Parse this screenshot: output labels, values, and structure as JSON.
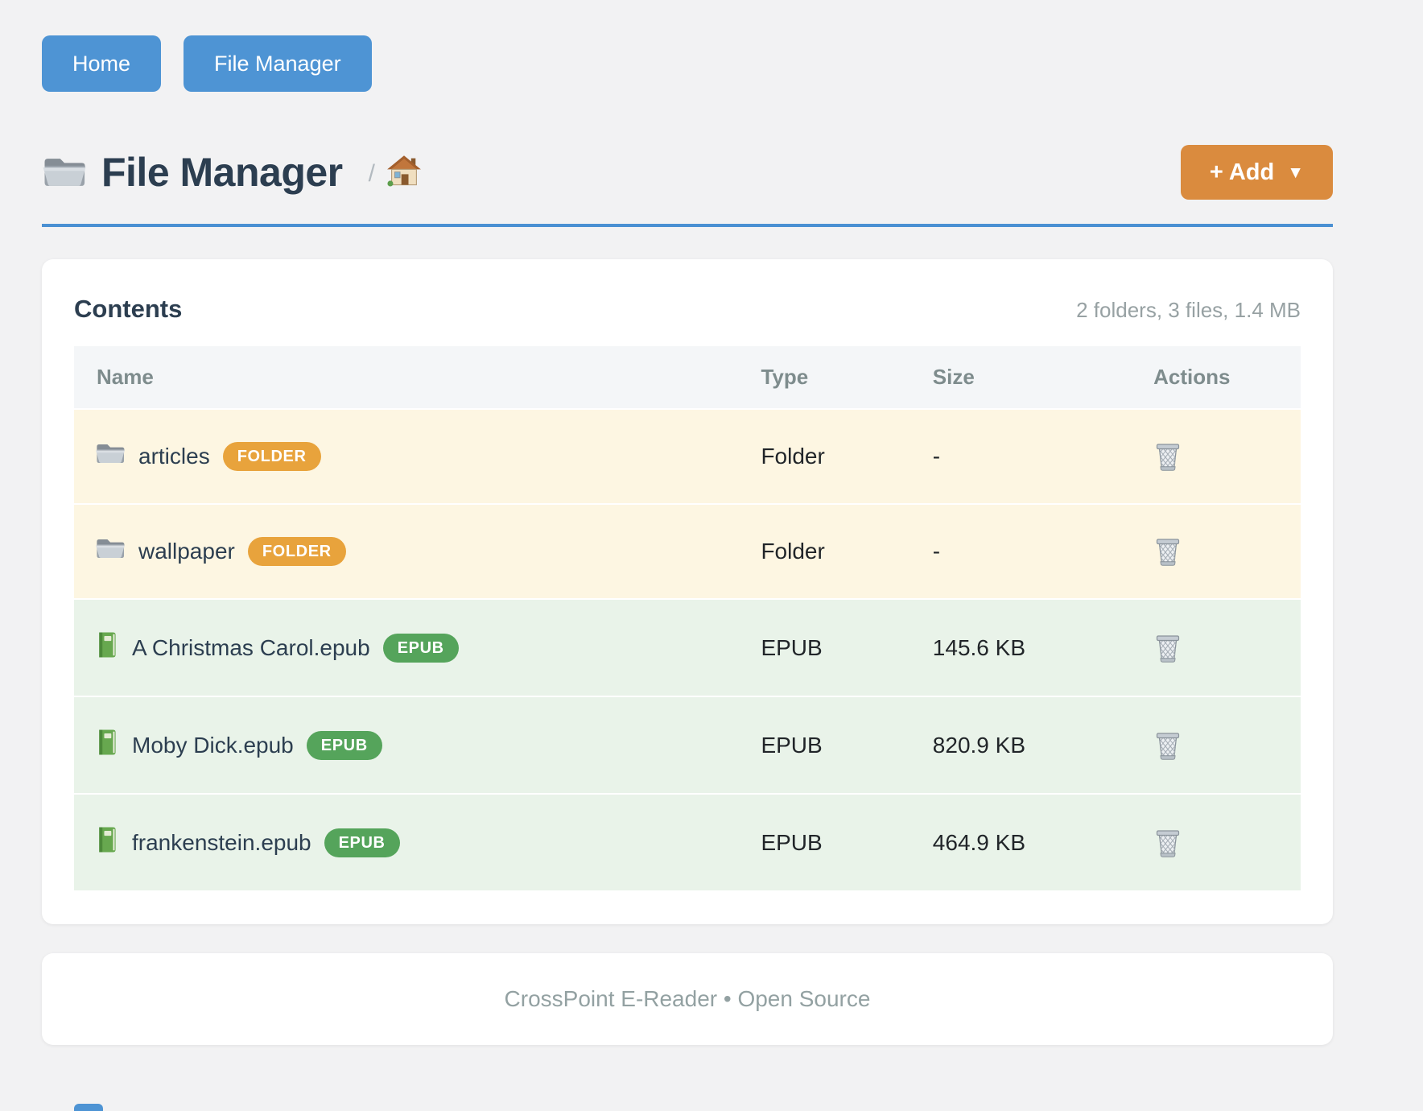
{
  "nav": {
    "buttons": [
      {
        "label": "Home"
      },
      {
        "label": "File Manager"
      }
    ]
  },
  "header": {
    "title": "File Manager",
    "breadcrumb_separator": "/",
    "add_button": {
      "label": "+ Add",
      "caret": "▼"
    }
  },
  "content_card": {
    "heading": "Contents",
    "summary": "2 folders, 3 files, 1.4 MB",
    "table": {
      "headers": [
        "Name",
        "Type",
        "Size",
        "Actions"
      ],
      "rows": [
        {
          "name": "articles",
          "badge": "FOLDER",
          "kind": "folder",
          "type": "Folder",
          "size": "-"
        },
        {
          "name": "wallpaper",
          "badge": "FOLDER",
          "kind": "folder",
          "type": "Folder",
          "size": "-"
        },
        {
          "name": "A Christmas Carol.epub",
          "badge": "EPUB",
          "kind": "epub",
          "type": "EPUB",
          "size": "145.6 KB"
        },
        {
          "name": "Moby Dick.epub",
          "badge": "EPUB",
          "kind": "epub",
          "type": "EPUB",
          "size": "820.9 KB"
        },
        {
          "name": "frankenstein.epub",
          "badge": "EPUB",
          "kind": "epub",
          "type": "EPUB",
          "size": "464.9 KB"
        }
      ]
    }
  },
  "footer": {
    "text": "CrossPoint E-Reader • Open Source"
  },
  "icons": {
    "title": "folder-icon",
    "breadcrumb_home": "house-icon",
    "folder_row": "folder-icon",
    "epub_row": "green-book-icon",
    "delete_action": "wastebasket-icon",
    "add_caret": "caret-down-icon"
  },
  "colors": {
    "nav_blue": "#4e94d4",
    "divider_blue": "#4a90d2",
    "accent_orange": "#da8b3e",
    "badge_folder": "#e8a33c",
    "badge_epub": "#55a45b",
    "row_folder_bg": "#fdf6e2",
    "row_epub_bg": "#e9f3e9",
    "heading_text": "#2c3e50"
  }
}
